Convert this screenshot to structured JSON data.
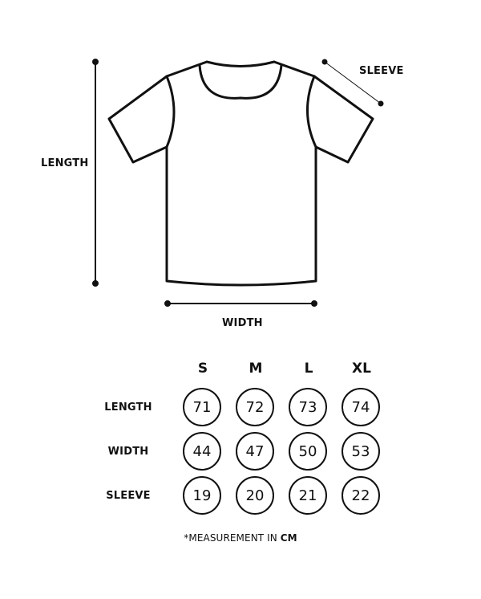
{
  "diagram": {
    "length_label": "LENGTH",
    "width_label": "WIDTH",
    "sleeve_label": "SLEEVE"
  },
  "table": {
    "sizes": [
      "S",
      "M",
      "L",
      "XL"
    ],
    "rows": [
      {
        "label": "LENGTH",
        "values": [
          "71",
          "72",
          "73",
          "74"
        ]
      },
      {
        "label": "WIDTH",
        "values": [
          "44",
          "47",
          "50",
          "53"
        ]
      },
      {
        "label": "SLEEVE",
        "values": [
          "19",
          "20",
          "21",
          "22"
        ]
      }
    ]
  },
  "footnote": {
    "prefix": "*MEASUREMENT IN ",
    "unit": "CM"
  }
}
